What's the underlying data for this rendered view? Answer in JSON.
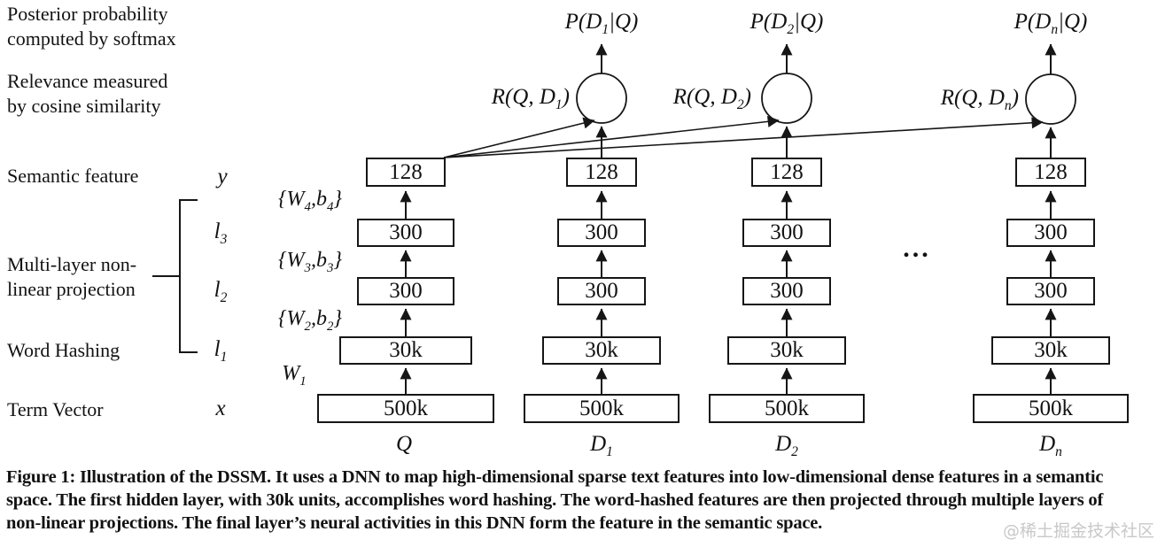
{
  "figure": {
    "side_labels": {
      "posterior_line1": "Posterior probability",
      "posterior_line2": "computed by softmax",
      "relevance_line1": "Relevance measured",
      "relevance_line2": "by cosine similarity",
      "semantic_feature": "Semantic feature",
      "multilayer_line1": "Multi-layer non-",
      "multilayer_line2": "linear projection",
      "word_hashing": "Word Hashing",
      "term_vector": "Term Vector"
    },
    "vars": [
      [
        {
          "t": "y"
        }
      ],
      [
        {
          "t": "l"
        },
        {
          "s": "3"
        }
      ],
      [
        {
          "t": "l"
        },
        {
          "s": "2"
        }
      ],
      [
        {
          "t": "l"
        },
        {
          "s": "1"
        }
      ],
      [
        {
          "t": "x"
        }
      ]
    ],
    "weights": [
      [
        {
          "t": "{W"
        },
        {
          "s": "4"
        },
        {
          "t": ",b"
        },
        {
          "s": "4"
        },
        {
          "t": "}"
        }
      ],
      [
        {
          "t": "{W"
        },
        {
          "s": "3"
        },
        {
          "t": ",b"
        },
        {
          "s": "3"
        },
        {
          "t": "}"
        }
      ],
      [
        {
          "t": "{W"
        },
        {
          "s": "2"
        },
        {
          "t": ",b"
        },
        {
          "s": "2"
        },
        {
          "t": "}"
        }
      ],
      [
        {
          "t": "W"
        },
        {
          "s": "1"
        }
      ]
    ],
    "p_labels": [
      [
        {
          "t": "P(D"
        },
        {
          "s": "1"
        },
        {
          "t": "|Q)"
        }
      ],
      [
        {
          "t": "P(D"
        },
        {
          "s": "2"
        },
        {
          "t": "|Q)"
        }
      ],
      [
        {
          "t": "P(D"
        },
        {
          "s": "n"
        },
        {
          "t": "|Q)"
        }
      ]
    ],
    "r_labels": [
      [
        {
          "t": "R(Q, D"
        },
        {
          "s": "1"
        },
        {
          "t": ")"
        }
      ],
      [
        {
          "t": "R(Q, D"
        },
        {
          "s": "2"
        },
        {
          "t": ")"
        }
      ],
      [
        {
          "t": "R(Q, D"
        },
        {
          "s": "n"
        },
        {
          "t": ")"
        }
      ]
    ],
    "columns": [
      {
        "label": [
          {
            "t": "Q"
          }
        ],
        "layers": [
          "128",
          "300",
          "300",
          "30k",
          "500k"
        ]
      },
      {
        "label": [
          {
            "t": "D"
          },
          {
            "s": "1"
          }
        ],
        "layers": [
          "128",
          "300",
          "300",
          "30k",
          "500k"
        ]
      },
      {
        "label": [
          {
            "t": "D"
          },
          {
            "s": "2"
          }
        ],
        "layers": [
          "128",
          "300",
          "300",
          "30k",
          "500k"
        ]
      },
      {
        "label": [
          {
            "t": "D"
          },
          {
            "s": "n"
          }
        ],
        "layers": [
          "128",
          "300",
          "300",
          "30k",
          "500k"
        ]
      }
    ],
    "ellipsis": "...",
    "caption_line1": "Figure 1: Illustration of the DSSM. It uses a DNN to map high-dimensional sparse text features into low-dimensional dense features in a semantic",
    "caption_line2": "space. The first hidden layer, with 30k units, accomplishes word hashing. The word-hashed features are then projected through multiple layers of",
    "caption_line3": "non-linear projections. The final layer’s neural activities in this DNN form the feature in the semantic space.",
    "watermark": "@稀土掘金技术社区",
    "colors": {
      "ink": "#161616",
      "watermark_gray": "#c8c8c8"
    }
  }
}
